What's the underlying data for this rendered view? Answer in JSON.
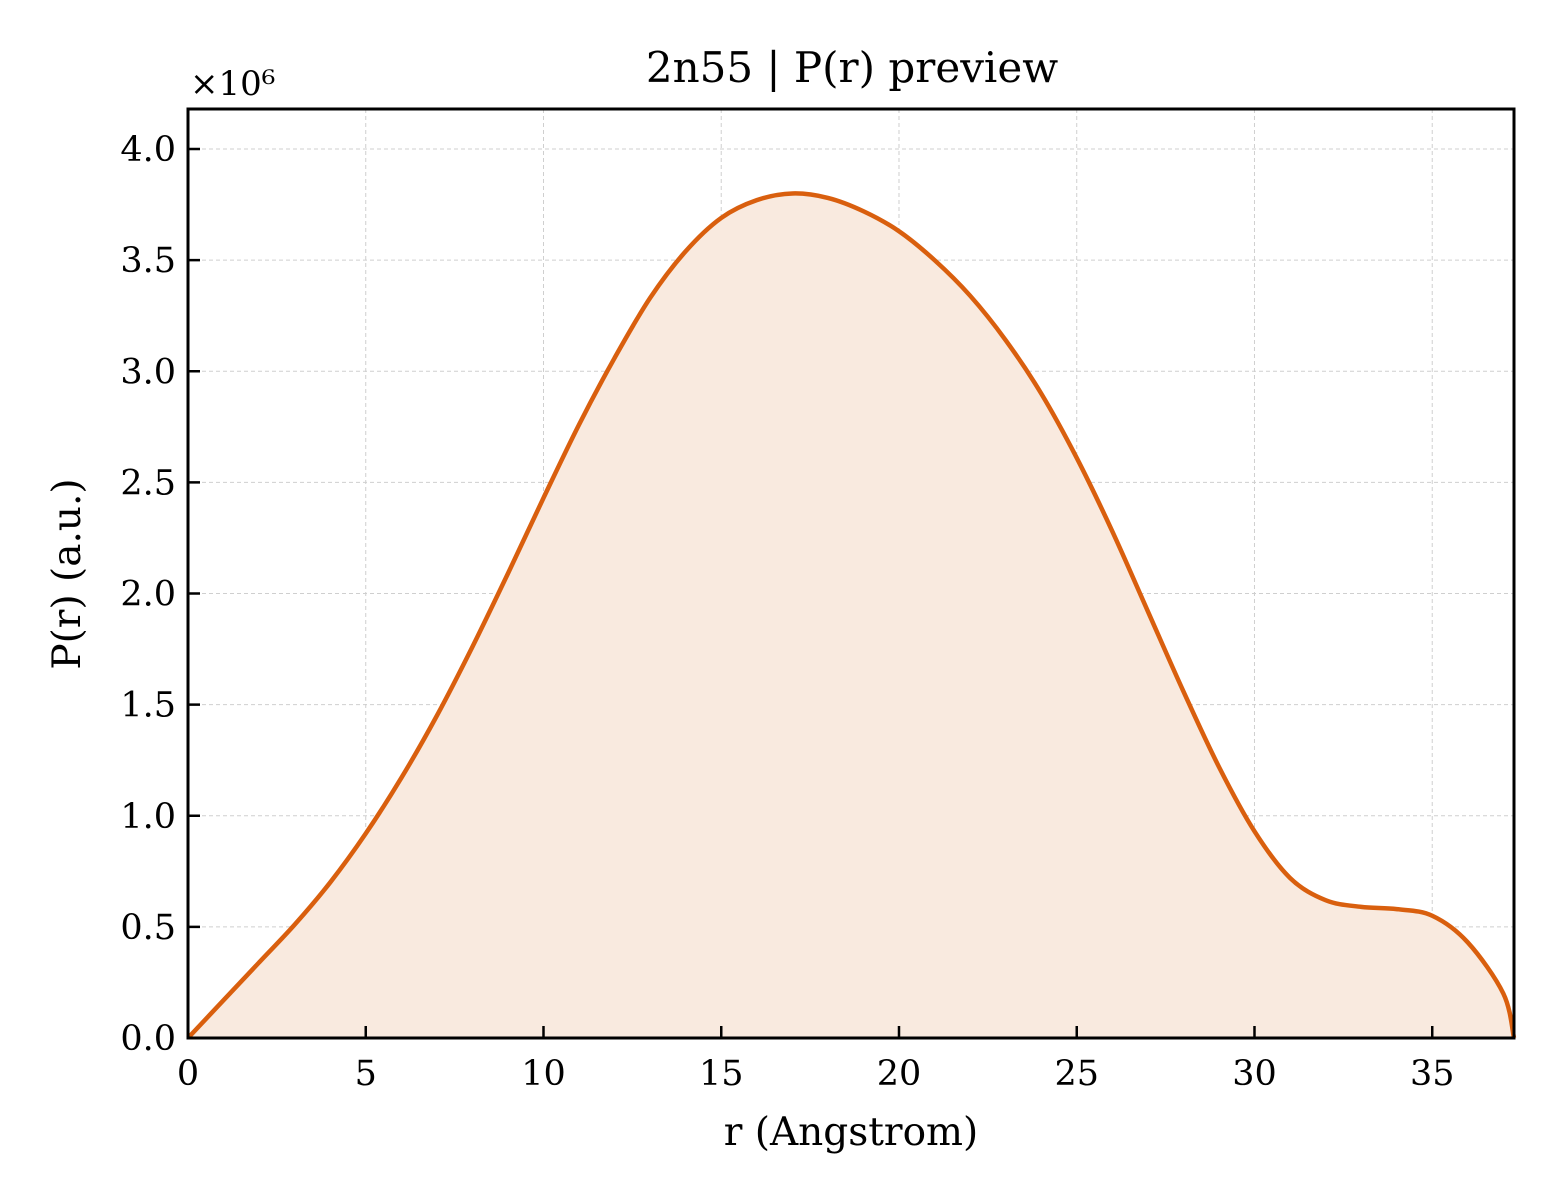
{
  "chart_data": {
    "type": "area",
    "title": "2n55 | P(r) preview",
    "xlabel": "r (Angstrom)",
    "ylabel": "P(r) (a.u.)",
    "y_multiplier_label": "×10⁶",
    "xlim": [
      0,
      37.3
    ],
    "ylim": [
      0,
      4.18
    ],
    "xticks": [
      0,
      5,
      10,
      15,
      20,
      25,
      30,
      35
    ],
    "yticks": [
      "0.0",
      "0.5",
      "1.0",
      "1.5",
      "2.0",
      "2.5",
      "3.0",
      "3.5",
      "4.0"
    ],
    "grid": true,
    "line_color": "#d95f0e",
    "fill_color": "#f9eadf",
    "series": [
      {
        "x": [
          0,
          1,
          2,
          3,
          4,
          5,
          6,
          7,
          8,
          9,
          10,
          11,
          12,
          13,
          14,
          15,
          16,
          17,
          18,
          19,
          20,
          21,
          22,
          23,
          24,
          25,
          26,
          27,
          28,
          29,
          30,
          31,
          32,
          33,
          34,
          35,
          36,
          37,
          37.3
        ],
        "y": [
          0.0,
          0.17,
          0.34,
          0.51,
          0.7,
          0.92,
          1.17,
          1.45,
          1.76,
          2.09,
          2.43,
          2.76,
          3.06,
          3.33,
          3.54,
          3.69,
          3.77,
          3.8,
          3.78,
          3.72,
          3.63,
          3.5,
          3.34,
          3.14,
          2.9,
          2.61,
          2.28,
          1.92,
          1.56,
          1.22,
          0.93,
          0.72,
          0.62,
          0.59,
          0.58,
          0.55,
          0.43,
          0.2,
          0.0
        ]
      }
    ]
  }
}
